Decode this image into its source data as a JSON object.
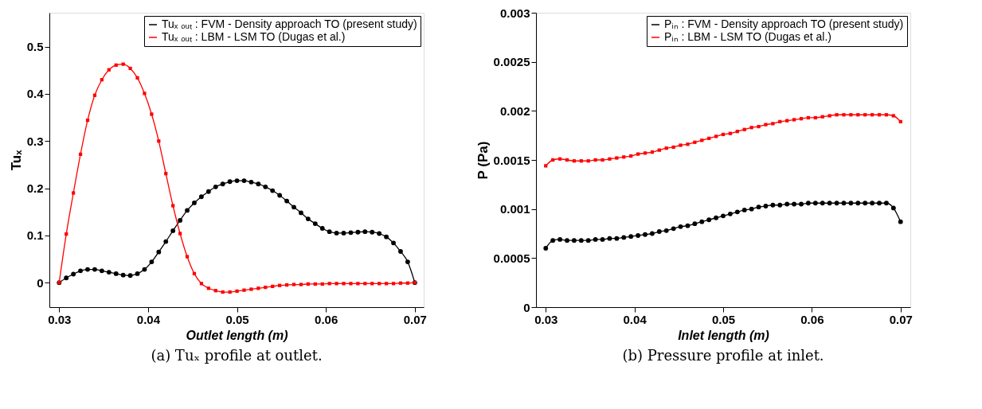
{
  "chart_data": [
    {
      "type": "line",
      "xlabel": "Outlet length (m)",
      "ylabel": "Tuₓ",
      "xlim": [
        0.0289,
        0.071
      ],
      "ylim": [
        -0.052,
        0.572
      ],
      "xticks": [
        0.03,
        0.04,
        0.05,
        0.06,
        0.07
      ],
      "yticks": [
        0,
        0.1,
        0.2,
        0.3,
        0.4,
        0.5
      ],
      "grid": false,
      "legend": "top right",
      "line_style": "solid",
      "annotations": [
        "(a) Tuₓ profile at outlet."
      ],
      "x": [
        0.03,
        0.0308,
        0.0316,
        0.0324,
        0.0332,
        0.034,
        0.0348,
        0.0356,
        0.0364,
        0.0372,
        0.038,
        0.0388,
        0.0396,
        0.0404,
        0.0412,
        0.042,
        0.0428,
        0.0436,
        0.0444,
        0.0452,
        0.046,
        0.0468,
        0.0476,
        0.0484,
        0.0492,
        0.05,
        0.0508,
        0.0516,
        0.0524,
        0.0532,
        0.054,
        0.0548,
        0.0556,
        0.0564,
        0.0572,
        0.058,
        0.0588,
        0.0596,
        0.0604,
        0.0612,
        0.062,
        0.0628,
        0.0636,
        0.0644,
        0.0652,
        0.066,
        0.0668,
        0.0676,
        0.0684,
        0.0692,
        0.07
      ],
      "series": [
        {
          "name": "Tuₓ ₒᵤₜ : FVM - Density approach TO (present study)",
          "color": "#000000",
          "marker": "circle",
          "values": [
            0,
            0.01,
            0.018,
            0.025,
            0.028,
            0.028,
            0.025,
            0.022,
            0.019,
            0.016,
            0.015,
            0.019,
            0.028,
            0.044,
            0.065,
            0.087,
            0.11,
            0.132,
            0.153,
            0.169,
            0.182,
            0.193,
            0.203,
            0.209,
            0.214,
            0.216,
            0.216,
            0.213,
            0.209,
            0.203,
            0.195,
            0.185,
            0.173,
            0.16,
            0.148,
            0.135,
            0.125,
            0.115,
            0.108,
            0.105,
            0.105,
            0.106,
            0.107,
            0.108,
            0.107,
            0.104,
            0.097,
            0.084,
            0.066,
            0.044,
            0
          ]
        },
        {
          "name": "Tuₓ ₒᵤₜ : LBM - LSM TO (Dugas et al.)",
          "color": "#ff0000",
          "marker": "square",
          "values": [
            0,
            0.103,
            0.19,
            0.272,
            0.344,
            0.397,
            0.43,
            0.451,
            0.461,
            0.463,
            0.454,
            0.434,
            0.401,
            0.357,
            0.3,
            0.231,
            0.163,
            0.104,
            0.055,
            0.019,
            -0.002,
            -0.012,
            -0.017,
            -0.02,
            -0.02,
            -0.018,
            -0.016,
            -0.014,
            -0.012,
            -0.01,
            -0.008,
            -0.006,
            -0.005,
            -0.004,
            -0.004,
            -0.003,
            -0.003,
            -0.003,
            -0.002,
            -0.002,
            -0.002,
            -0.002,
            -0.002,
            -0.002,
            -0.002,
            -0.002,
            -0.002,
            -0.002,
            -0.001,
            -0.001,
            0
          ]
        }
      ]
    },
    {
      "type": "line",
      "xlabel": "Inlet length (m)",
      "ylabel": "P (Pa)",
      "xlim": [
        0.0289,
        0.0711
      ],
      "ylim": [
        0,
        0.003
      ],
      "xticks": [
        0.03,
        0.04,
        0.05,
        0.06,
        0.07
      ],
      "yticks": [
        0,
        0.0005,
        0.001,
        0.0015,
        0.002,
        0.0025,
        0.003
      ],
      "grid": false,
      "legend": "top right",
      "line_style": "solid",
      "annotations": [
        "(b) Pressure profile at inlet."
      ],
      "x": [
        0.03,
        0.0308,
        0.0316,
        0.0324,
        0.0332,
        0.034,
        0.0348,
        0.0356,
        0.0364,
        0.0372,
        0.038,
        0.0388,
        0.0396,
        0.0404,
        0.0412,
        0.042,
        0.0428,
        0.0436,
        0.0444,
        0.0452,
        0.046,
        0.0468,
        0.0476,
        0.0484,
        0.0492,
        0.05,
        0.0508,
        0.0516,
        0.0524,
        0.0532,
        0.054,
        0.0548,
        0.0556,
        0.0564,
        0.0572,
        0.058,
        0.0588,
        0.0596,
        0.0604,
        0.0612,
        0.062,
        0.0628,
        0.0636,
        0.0644,
        0.0652,
        0.066,
        0.0668,
        0.0676,
        0.0684,
        0.0692,
        0.07
      ],
      "series": [
        {
          "name": "Pᵢₙ : FVM - Density approach TO (present study)",
          "color": "#000000",
          "marker": "circle",
          "values": [
            0.0006,
            0.00068,
            0.00069,
            0.00068,
            0.00068,
            0.00068,
            0.00068,
            0.00069,
            0.00069,
            0.0007,
            0.0007,
            0.00071,
            0.00072,
            0.00073,
            0.00074,
            0.00075,
            0.00077,
            0.00078,
            0.0008,
            0.00082,
            0.00083,
            0.00085,
            0.00087,
            0.00089,
            0.00091,
            0.00093,
            0.00095,
            0.00097,
            0.00099,
            0.001,
            0.00102,
            0.00103,
            0.00104,
            0.00104,
            0.00105,
            0.00105,
            0.00105,
            0.00106,
            0.00106,
            0.00106,
            0.00106,
            0.00106,
            0.00106,
            0.00106,
            0.00106,
            0.00106,
            0.00106,
            0.00106,
            0.00106,
            0.00101,
            0.00087
          ]
        },
        {
          "name": "Pᵢₙ : LBM - LSM TO (Dugas et al.)",
          "color": "#ff0000",
          "marker": "square",
          "values": [
            0.00144,
            0.0015,
            0.00151,
            0.0015,
            0.00149,
            0.00149,
            0.00149,
            0.0015,
            0.0015,
            0.00151,
            0.00152,
            0.00153,
            0.00154,
            0.00156,
            0.00157,
            0.00158,
            0.0016,
            0.00162,
            0.00163,
            0.00165,
            0.00166,
            0.00168,
            0.0017,
            0.00172,
            0.00174,
            0.00176,
            0.00177,
            0.00179,
            0.00181,
            0.00183,
            0.00184,
            0.00186,
            0.00187,
            0.00189,
            0.0019,
            0.00191,
            0.00192,
            0.00193,
            0.00193,
            0.00194,
            0.00195,
            0.00196,
            0.00196,
            0.00196,
            0.00196,
            0.00196,
            0.00196,
            0.00196,
            0.00196,
            0.00195,
            0.00189
          ]
        }
      ]
    }
  ]
}
